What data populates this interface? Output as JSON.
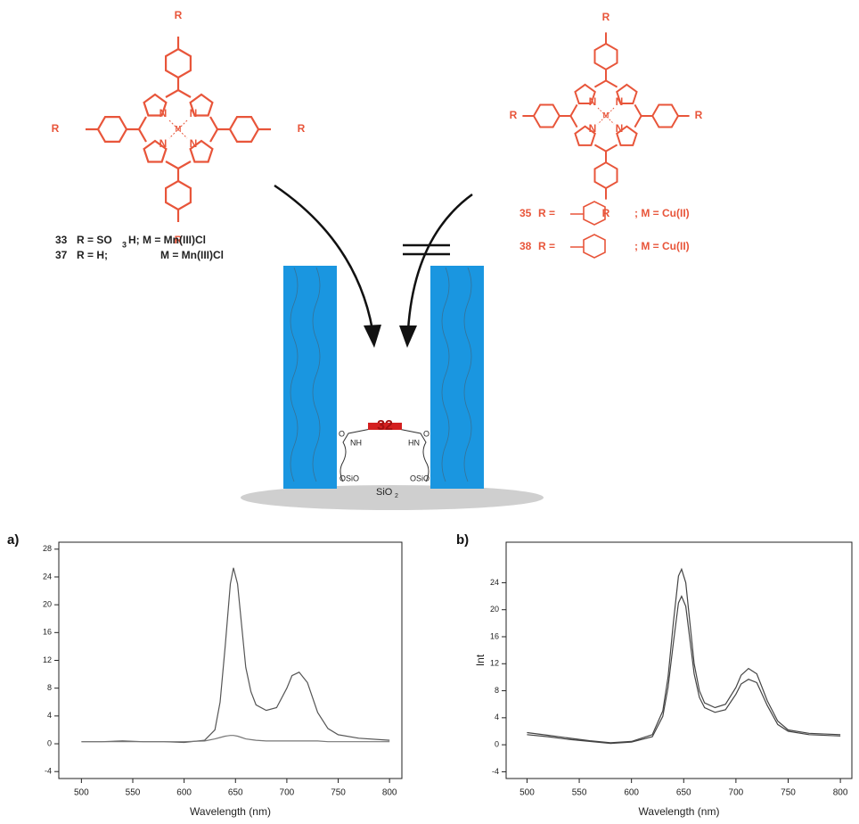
{
  "diagram": {
    "left_labels": [
      "R",
      "R",
      "R",
      "R",
      "N",
      "N",
      "N",
      "N",
      "M"
    ],
    "right_labels": [
      "R",
      "R",
      "R",
      "R",
      "N",
      "N",
      "N",
      "N",
      "M"
    ],
    "compound_33": [
      "33",
      "R = SO",
      "3",
      "H; M = Mn(III)Cl"
    ],
    "compound_37": [
      "37",
      "R = H;",
      "M = Mn(III)Cl"
    ],
    "compound_35": [
      "35",
      "R =",
      "; M = Cu(II)"
    ],
    "compound_38": [
      "38",
      "R =",
      "; M = Cu(II)"
    ],
    "channel_labels": [
      "32",
      "NH",
      "HN",
      "O",
      "O",
      "OSiO",
      "OSiO",
      "SiO",
      "2"
    ]
  },
  "chart_data": [
    {
      "type": "line",
      "title": "a)",
      "x_label": "Wavelength (nm)",
      "x": [
        500,
        520,
        540,
        560,
        580,
        600,
        620,
        630,
        635,
        640,
        645,
        648,
        652,
        656,
        660,
        665,
        670,
        680,
        690,
        700,
        705,
        712,
        720,
        730,
        740,
        750,
        770,
        800
      ],
      "series": [
        {
          "color": "#555555",
          "values": [
            0.3,
            0.3,
            0.4,
            0.3,
            0.3,
            0.2,
            0.5,
            2,
            6,
            14,
            23,
            25.3,
            23,
            17,
            11,
            7.5,
            5.6,
            4.8,
            5.2,
            8,
            9.8,
            10.3,
            8.8,
            4.5,
            2.2,
            1.3,
            0.8,
            0.5
          ]
        },
        {
          "color": "#777777",
          "values": [
            0.3,
            0.3,
            0.3,
            0.3,
            0.3,
            0.3,
            0.4,
            0.7,
            0.9,
            1.1,
            1.2,
            1.2,
            1.1,
            0.9,
            0.7,
            0.6,
            0.5,
            0.4,
            0.4,
            0.4,
            0.4,
            0.4,
            0.4,
            0.4,
            0.3,
            0.3,
            0.3,
            0.3
          ]
        }
      ],
      "xlim": [
        478,
        812
      ],
      "xticks": [
        500,
        550,
        600,
        650,
        700,
        750,
        800
      ],
      "ylim": [
        -5,
        29
      ],
      "yticks": [
        -4,
        0,
        4,
        8,
        12,
        16,
        20,
        24,
        28
      ]
    },
    {
      "type": "line",
      "title": "b)",
      "x_label": "Wavelength (nm)",
      "y_label": "Int",
      "x": [
        500,
        520,
        540,
        560,
        580,
        600,
        620,
        630,
        635,
        640,
        645,
        648,
        652,
        656,
        660,
        665,
        670,
        680,
        690,
        700,
        705,
        712,
        720,
        730,
        740,
        750,
        770,
        800
      ],
      "series": [
        {
          "color": "#444444",
          "values": [
            1.8,
            1.4,
            1.0,
            0.6,
            0.3,
            0.5,
            1.5,
            5,
            10,
            18,
            25,
            26,
            24,
            18,
            12,
            8,
            6.2,
            5.5,
            6,
            8.5,
            10.3,
            11.3,
            10.5,
            6.5,
            3.5,
            2.2,
            1.7,
            1.5
          ]
        },
        {
          "color": "#444444",
          "values": [
            1.5,
            1.2,
            0.8,
            0.5,
            0.2,
            0.4,
            1.2,
            4.2,
            8.5,
            15,
            21,
            22,
            20.5,
            15.5,
            10.5,
            7,
            5.5,
            4.8,
            5.2,
            7.5,
            9,
            9.7,
            9.2,
            5.8,
            3,
            2,
            1.5,
            1.3
          ]
        }
      ],
      "xlim": [
        480,
        811
      ],
      "xticks": [
        500,
        550,
        600,
        650,
        700,
        750,
        800
      ],
      "ylim": [
        -5,
        30
      ],
      "yticks": [
        -4,
        0,
        4,
        8,
        12,
        16,
        20,
        24
      ]
    }
  ]
}
